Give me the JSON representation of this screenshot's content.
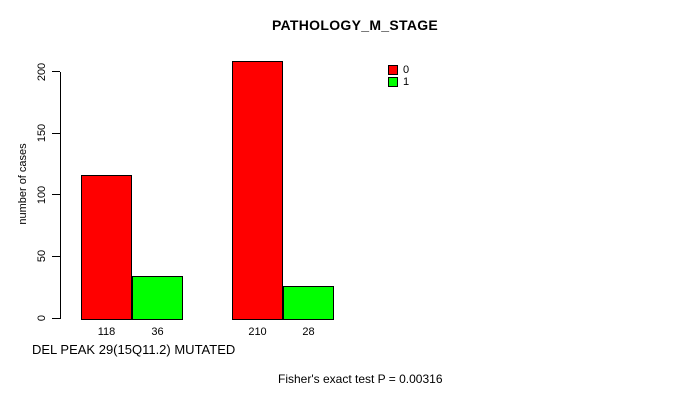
{
  "chart_data": {
    "type": "bar",
    "title": "PATHOLOGY_M_STAGE",
    "ylabel": "number of cases",
    "xlabel": "DEL PEAK 29(15Q11.2) MUTATED",
    "yticks": [
      0,
      50,
      100,
      150,
      200
    ],
    "ylim": [
      0,
      210
    ],
    "grid": false,
    "legend_position": "top-right",
    "series": [
      {
        "name": "0",
        "color": "#FF0000",
        "values": [
          118,
          210
        ]
      },
      {
        "name": "1",
        "color": "#00FF00",
        "values": [
          36,
          28
        ]
      }
    ],
    "bar_value_labels": [
      118,
      36,
      210,
      28
    ],
    "annotation": "Fisher's exact test P = 0.00316"
  }
}
